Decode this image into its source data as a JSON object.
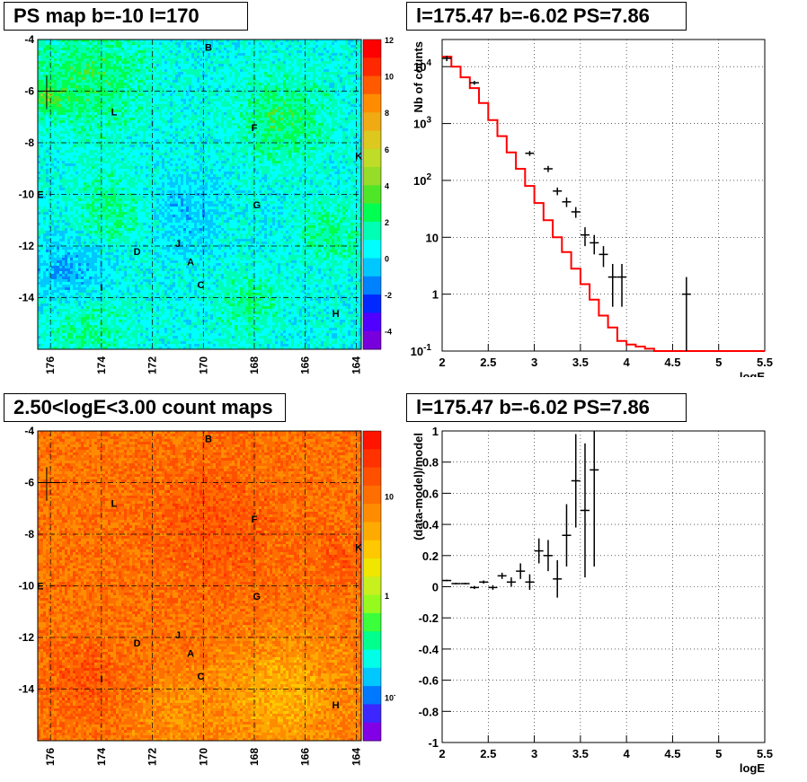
{
  "maps": [
    {
      "title": "PS map b=-10 l=170",
      "type": "ps",
      "xticks": [
        "176",
        "174",
        "172",
        "170",
        "168",
        "166",
        "164"
      ],
      "yticks": [
        "-4",
        "-6",
        "-8",
        "-10",
        "-12",
        "-14"
      ],
      "scale_labels": [
        "12",
        "10",
        "8",
        "6",
        "4",
        "2",
        "0",
        "-2",
        "-4"
      ],
      "sources": [
        {
          "name": "B",
          "l": 169.8,
          "b": -4.3
        },
        {
          "name": "L",
          "l": 173.5,
          "b": -6.8
        },
        {
          "name": "F",
          "l": 168.0,
          "b": -7.4
        },
        {
          "name": "K",
          "l": 163.9,
          "b": -8.5
        },
        {
          "name": "E",
          "l": 176.4,
          "b": -10.0
        },
        {
          "name": "G",
          "l": 167.9,
          "b": -10.4
        },
        {
          "name": "J",
          "l": 171.0,
          "b": -11.9
        },
        {
          "name": "D",
          "l": 172.6,
          "b": -12.2
        },
        {
          "name": "A",
          "l": 170.5,
          "b": -12.6
        },
        {
          "name": "I",
          "l": 174.0,
          "b": -13.6
        },
        {
          "name": "C",
          "l": 170.1,
          "b": -13.5
        },
        {
          "name": "H",
          "l": 164.8,
          "b": -14.6
        }
      ]
    },
    {
      "title": "2.50<logE<3.00 count maps",
      "type": "counts",
      "xticks": [
        "176",
        "174",
        "172",
        "170",
        "168",
        "166",
        "164"
      ],
      "yticks": [
        "-4",
        "-6",
        "-8",
        "-10",
        "-12",
        "-14"
      ],
      "scale_labels": [
        "10",
        "1",
        "10"
      ],
      "scale_sup": "-1",
      "sources": [
        {
          "name": "B",
          "l": 169.8,
          "b": -4.3
        },
        {
          "name": "L",
          "l": 173.5,
          "b": -6.8
        },
        {
          "name": "F",
          "l": 168.0,
          "b": -7.4
        },
        {
          "name": "K",
          "l": 163.9,
          "b": -8.5
        },
        {
          "name": "E",
          "l": 176.4,
          "b": -10.0
        },
        {
          "name": "G",
          "l": 167.9,
          "b": -10.4
        },
        {
          "name": "J",
          "l": 171.0,
          "b": -11.9
        },
        {
          "name": "D",
          "l": 172.6,
          "b": -12.2
        },
        {
          "name": "A",
          "l": 170.5,
          "b": -12.6
        },
        {
          "name": "I",
          "l": 174.0,
          "b": -13.6
        },
        {
          "name": "C",
          "l": 170.1,
          "b": -13.5
        },
        {
          "name": "H",
          "l": 164.8,
          "b": -14.6
        }
      ]
    }
  ],
  "chart_data": [
    {
      "type": "heatmap",
      "title": "PS map b=-10 l=170",
      "xlim": [
        176.5,
        163.8
      ],
      "ylim": [
        -16,
        -4
      ],
      "zlim": [
        -5,
        12
      ],
      "grid": true
    },
    {
      "type": "line",
      "title": "l=175.47 b=-6.02 PS=7.86",
      "xlabel": "logE",
      "ylabel": "Nb of counts",
      "xlim": [
        2,
        5.5
      ],
      "ylim": [
        0.1,
        30000
      ],
      "yscale": "log",
      "xticks": [
        "2",
        "2.5",
        "3",
        "3.5",
        "4",
        "4.5",
        "5",
        "5.5"
      ],
      "yticks": [
        {
          "v": 0.1,
          "base": "10",
          "sup": "-1"
        },
        {
          "v": 1,
          "base": "1",
          "sup": ""
        },
        {
          "v": 10,
          "base": "10",
          "sup": ""
        },
        {
          "v": 100,
          "base": "10",
          "sup": "2"
        },
        {
          "v": 1000,
          "base": "10",
          "sup": "3"
        },
        {
          "v": 10000,
          "base": "10",
          "sup": "4"
        }
      ],
      "model_edges": [
        2.0,
        2.1,
        2.2,
        2.3,
        2.4,
        2.5,
        2.6,
        2.7,
        2.8,
        2.9,
        3.0,
        3.1,
        3.2,
        3.3,
        3.4,
        3.5,
        3.6,
        3.7,
        3.8,
        3.9,
        4.0,
        4.1,
        4.2,
        4.3,
        5.5
      ],
      "model_values": [
        15000,
        10000,
        6500,
        4200,
        2300,
        1150,
        600,
        310,
        160,
        80,
        40,
        20,
        10,
        5.5,
        2.8,
        1.5,
        0.8,
        0.42,
        0.26,
        0.15,
        0.13,
        0.12,
        0.11,
        0.1
      ],
      "data_points": [
        {
          "x": 2.05,
          "y": 14000,
          "lo": 12500,
          "hi": 15500
        },
        {
          "x": 2.35,
          "y": 5200,
          "lo": 4800,
          "hi": 5600
        },
        {
          "x": 2.95,
          "y": 300,
          "lo": 270,
          "hi": 330
        },
        {
          "x": 3.15,
          "y": 160,
          "lo": 140,
          "hi": 180
        },
        {
          "x": 3.25,
          "y": 65,
          "lo": 55,
          "hi": 75
        },
        {
          "x": 3.35,
          "y": 42,
          "lo": 34,
          "hi": 50
        },
        {
          "x": 3.45,
          "y": 28,
          "lo": 22,
          "hi": 34
        },
        {
          "x": 3.55,
          "y": 11,
          "lo": 7,
          "hi": 15
        },
        {
          "x": 3.65,
          "y": 8,
          "lo": 5,
          "hi": 11
        },
        {
          "x": 3.75,
          "y": 5,
          "lo": 3,
          "hi": 7
        },
        {
          "x": 3.85,
          "y": 2,
          "lo": 0.6,
          "hi": 3.4
        },
        {
          "x": 3.95,
          "y": 2,
          "lo": 0.6,
          "hi": 3.4
        },
        {
          "x": 4.65,
          "y": 1,
          "lo": 0.1,
          "hi": 2
        }
      ]
    },
    {
      "type": "heatmap",
      "title": "2.50<logE<3.00 count maps",
      "xlim": [
        176.5,
        163.8
      ],
      "ylim": [
        -16,
        -4
      ],
      "zscale": "log",
      "grid": true
    },
    {
      "type": "scatter",
      "title": "l=175.47 b=-6.02 PS=7.86",
      "xlabel": "logE",
      "ylabel": "(data-model)/model",
      "xlim": [
        2,
        5.5
      ],
      "ylim": [
        -1,
        1
      ],
      "xticks": [
        "2",
        "2.5",
        "3",
        "3.5",
        "4",
        "4.5",
        "5",
        "5.5"
      ],
      "yticks": [
        "-1",
        "-0.8",
        "-0.6",
        "-0.4",
        "-0.2",
        "0",
        "0.2",
        "0.4",
        "0.6",
        "0.8",
        "1"
      ],
      "points": [
        {
          "x": 2.05,
          "y": 0.04,
          "err": 0.005
        },
        {
          "x": 2.15,
          "y": 0.02,
          "err": 0.005
        },
        {
          "x": 2.25,
          "y": 0.02,
          "err": 0.005
        },
        {
          "x": 2.35,
          "y": -0.005,
          "err": 0.01
        },
        {
          "x": 2.45,
          "y": 0.03,
          "err": 0.01
        },
        {
          "x": 2.55,
          "y": -0.005,
          "err": 0.015
        },
        {
          "x": 2.65,
          "y": 0.07,
          "err": 0.02
        },
        {
          "x": 2.75,
          "y": 0.03,
          "err": 0.03
        },
        {
          "x": 2.85,
          "y": 0.1,
          "err": 0.05
        },
        {
          "x": 2.95,
          "y": 0.03,
          "err": 0.05
        },
        {
          "x": 3.05,
          "y": 0.23,
          "err": 0.08
        },
        {
          "x": 3.15,
          "y": 0.2,
          "err": 0.1
        },
        {
          "x": 3.25,
          "y": 0.05,
          "err": 0.12
        },
        {
          "x": 3.35,
          "y": 0.33,
          "err": 0.2
        },
        {
          "x": 3.45,
          "y": 0.68,
          "err": 0.3
        },
        {
          "x": 3.55,
          "y": 0.49,
          "err": 0.43
        },
        {
          "x": 3.65,
          "y": 0.75,
          "err": 0.62
        }
      ]
    }
  ],
  "plots": [
    {
      "title": "l=175.47 b=-6.02 PS=7.86",
      "xlabel": "logE",
      "ylabel": "Nb of counts"
    },
    {
      "title": "l=175.47 b=-6.02 PS=7.86",
      "xlabel": "logE",
      "ylabel": "(data-model)/model"
    }
  ],
  "colors": {
    "model": "#ff0000",
    "data": "#000000",
    "grid": "#000000"
  }
}
